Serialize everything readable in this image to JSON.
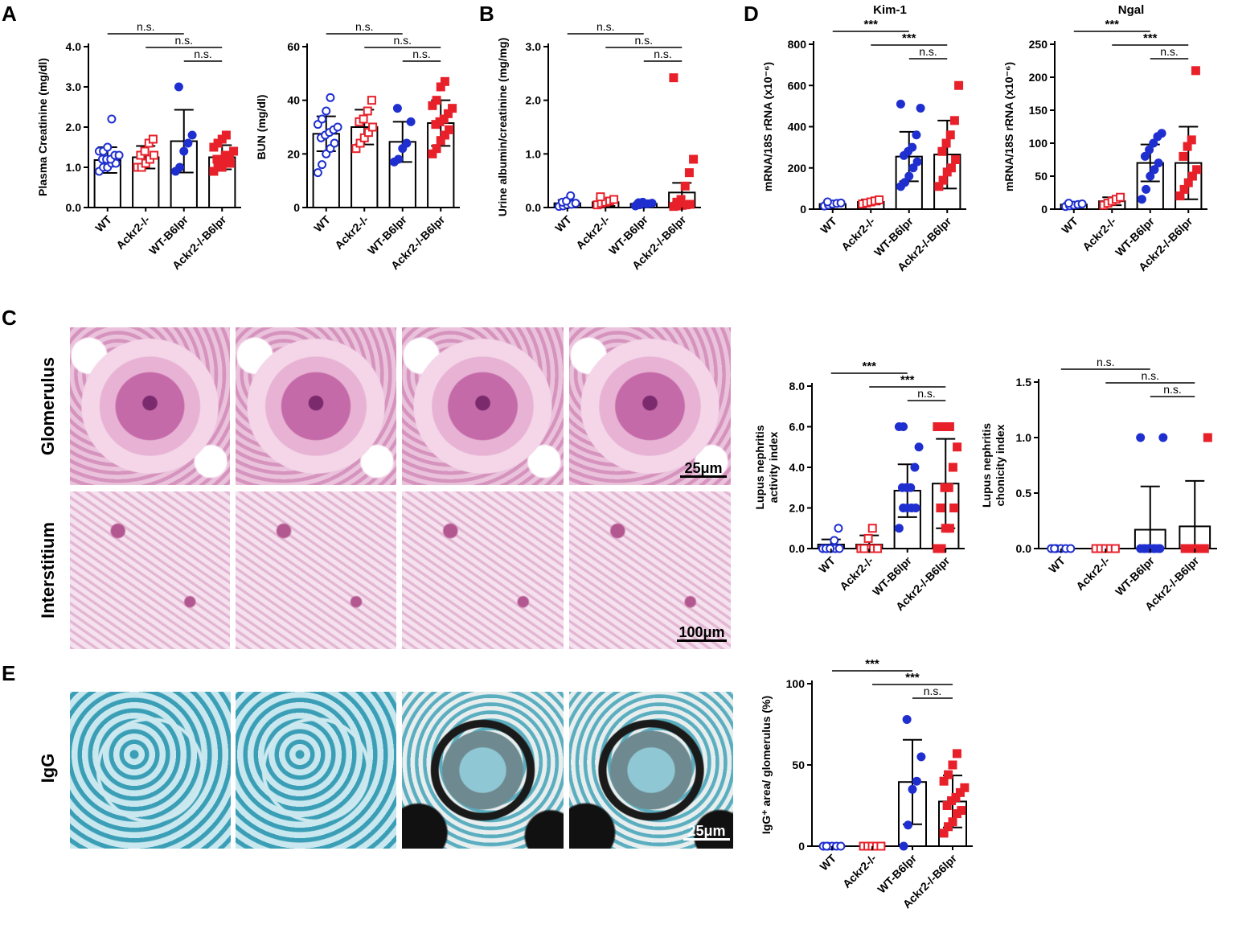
{
  "panels": {
    "A": "A",
    "B": "B",
    "C": "C",
    "D": "D",
    "E": "E"
  },
  "groups": [
    "WT",
    "Ackr2-/-",
    "WT-B6lpr",
    "Ackr2-/-B6lpr"
  ],
  "micrographs": {
    "glomerulus_label": "Glomerulus",
    "interstitium_label": "Interstitium",
    "igg_label": "IgG",
    "scale_glom": "25μm",
    "scale_int": "100μm",
    "scale_igg": "25μm"
  },
  "colors": {
    "wt": "#1f2fcf",
    "ko": "#e8202a",
    "axis": "#000000"
  },
  "chart_data": [
    {
      "id": "creatinine",
      "type": "bar",
      "title": "",
      "ylabel": "Plasma Creatinine  (mg/dl)",
      "ylim": [
        0,
        4
      ],
      "yticks": [
        "0.0",
        "1.0",
        "2.0",
        "3.0",
        "4.0"
      ],
      "categories": [
        "WT",
        "Ackr2-/-",
        "WT-B6lpr",
        "Ackr2-/-B6lpr"
      ],
      "values": [
        1.18,
        1.25,
        1.65,
        1.25
      ],
      "sd": [
        0.32,
        0.28,
        0.78,
        0.3
      ],
      "points": [
        [
          0.9,
          1.0,
          1.0,
          1.1,
          1.1,
          1.2,
          1.2,
          1.2,
          1.3,
          1.3,
          1.4,
          1.4,
          1.5,
          2.2
        ],
        [
          1.0,
          1.0,
          1.1,
          1.2,
          1.3,
          1.3,
          1.4,
          1.6,
          1.7
        ],
        [
          0.9,
          1.0,
          1.4,
          1.6,
          1.8,
          3.0
        ],
        [
          0.9,
          1.0,
          1.0,
          1.1,
          1.1,
          1.2,
          1.2,
          1.3,
          1.3,
          1.4,
          1.5,
          1.6,
          1.7,
          1.8
        ]
      ],
      "sig": [
        {
          "from": 0,
          "to": 2,
          "label": "n.s."
        },
        {
          "from": 1,
          "to": 3,
          "label": "n.s."
        },
        {
          "from": 2,
          "to": 3,
          "label": "n.s."
        }
      ]
    },
    {
      "id": "bun",
      "type": "bar",
      "title": "",
      "ylabel": "BUN (mg/dl)",
      "ylim": [
        0,
        60
      ],
      "yticks": [
        "0",
        "20",
        "40",
        "60"
      ],
      "categories": [
        "WT",
        "Ackr2-/-",
        "WT-B6lpr",
        "Ackr2-/-B6lpr"
      ],
      "values": [
        27.5,
        30,
        24.5,
        31.5
      ],
      "sd": [
        6.5,
        6.5,
        7.5,
        8.5
      ],
      "points": [
        [
          13,
          16,
          20,
          22,
          24,
          26,
          27,
          28,
          29,
          30,
          31,
          33,
          36,
          41
        ],
        [
          22,
          24,
          26,
          28,
          30,
          32,
          33,
          36,
          40
        ],
        [
          17,
          18,
          22,
          24,
          32,
          37
        ],
        [
          20,
          22,
          25,
          27,
          29,
          31,
          32,
          33,
          35,
          37,
          38,
          40,
          45,
          47
        ]
      ],
      "sig": [
        {
          "from": 0,
          "to": 2,
          "label": "n.s."
        },
        {
          "from": 1,
          "to": 3,
          "label": "n.s."
        },
        {
          "from": 2,
          "to": 3,
          "label": "n.s."
        }
      ]
    },
    {
      "id": "albumin",
      "type": "bar",
      "title": "",
      "ylabel": "Urine albumin/creatinine (mg/mg)",
      "ylim": [
        0,
        3
      ],
      "yticks": [
        "0.0",
        "1.0",
        "2.0",
        "3.0"
      ],
      "categories": [
        "WT",
        "Ackr2-/-",
        "WT-B6lpr",
        "Ackr2-/-B6lpr"
      ],
      "values": [
        0.08,
        0.1,
        0.07,
        0.28
      ],
      "sd": [
        0.06,
        0.07,
        0.04,
        0.18
      ],
      "points": [
        [
          0.02,
          0.03,
          0.05,
          0.06,
          0.08,
          0.1,
          0.12,
          0.22
        ],
        [
          0.05,
          0.08,
          0.1,
          0.12,
          0.15,
          0.2
        ],
        [
          0.03,
          0.05,
          0.06,
          0.07,
          0.08,
          0.09,
          0.1
        ],
        [
          0.02,
          0.03,
          0.04,
          0.05,
          0.06,
          0.1,
          0.15,
          0.4,
          0.65,
          0.9,
          2.42
        ]
      ],
      "sig": [
        {
          "from": 0,
          "to": 2,
          "label": "n.s."
        },
        {
          "from": 1,
          "to": 3,
          "label": "n.s."
        },
        {
          "from": 2,
          "to": 3,
          "label": "n.s."
        }
      ]
    },
    {
      "id": "kim1",
      "type": "bar",
      "title": "Kim-1",
      "ylabel": "mRNA/18S rRNA (x10⁻⁶)",
      "ylim": [
        0,
        800
      ],
      "yticks": [
        "0",
        "200",
        "400",
        "600",
        "800"
      ],
      "categories": [
        "WT",
        "Ackr2-/-",
        "WT-B6lpr",
        "Ackr2-/-B6lpr"
      ],
      "values": [
        25,
        35,
        255,
        265
      ],
      "sd": [
        10,
        12,
        120,
        165
      ],
      "points": [
        [
          15,
          20,
          25,
          28,
          30,
          35
        ],
        [
          25,
          30,
          35,
          40,
          45
        ],
        [
          110,
          130,
          160,
          200,
          230,
          260,
          280,
          300,
          360,
          490,
          510
        ],
        [
          110,
          140,
          180,
          200,
          240,
          280,
          320,
          360,
          430,
          600
        ]
      ],
      "sig": [
        {
          "from": 0,
          "to": 2,
          "label": "***"
        },
        {
          "from": 1,
          "to": 3,
          "label": "***"
        },
        {
          "from": 2,
          "to": 3,
          "label": "n.s."
        }
      ]
    },
    {
      "id": "ngal",
      "type": "bar",
      "title": "Ngal",
      "ylabel": "mRNA/18S rRNA (x10⁻⁶)",
      "ylim": [
        0,
        250
      ],
      "yticks": [
        "0",
        "50",
        "100",
        "150",
        "200",
        "250"
      ],
      "categories": [
        "WT",
        "Ackr2-/-",
        "WT-B6lpr",
        "Ackr2-/-B6lpr"
      ],
      "values": [
        7,
        12,
        70,
        70
      ],
      "sd": [
        3,
        6,
        28,
        55
      ],
      "points": [
        [
          4,
          5,
          6,
          7,
          8,
          9
        ],
        [
          6,
          9,
          12,
          15,
          18
        ],
        [
          15,
          30,
          50,
          60,
          70,
          80,
          90,
          100,
          110,
          115
        ],
        [
          20,
          30,
          40,
          50,
          60,
          80,
          95,
          105,
          210
        ]
      ],
      "sig": [
        {
          "from": 0,
          "to": 2,
          "label": "***"
        },
        {
          "from": 1,
          "to": 3,
          "label": "***"
        },
        {
          "from": 2,
          "to": 3,
          "label": "n.s."
        }
      ]
    },
    {
      "id": "activity",
      "type": "bar",
      "title": "",
      "ylabel": "Lupus nephritis activity index",
      "ylim": [
        0,
        8
      ],
      "yticks": [
        "0.0",
        "2.0",
        "4.0",
        "6.0",
        "8.0"
      ],
      "categories": [
        "WT",
        "Ackr2-/-",
        "WT-B6lpr",
        "Ackr2-/-B6lpr"
      ],
      "values": [
        0.2,
        0.2,
        2.85,
        3.2
      ],
      "sd": [
        0.25,
        0.45,
        1.3,
        2.2
      ],
      "points": [
        [
          0,
          0,
          0,
          0,
          0,
          0,
          0,
          0.4,
          1.0
        ],
        [
          0,
          0,
          0,
          0,
          0,
          0,
          0.5,
          1.0
        ],
        [
          1.0,
          2.0,
          2.0,
          2.0,
          2.0,
          3.0,
          3.0,
          3.0,
          4.0,
          5.0,
          6.0,
          6.0
        ],
        [
          0,
          0,
          1.0,
          1.0,
          2.0,
          2.0,
          3.0,
          3.0,
          4.0,
          5.0,
          6.0,
          6.0,
          6.0,
          6.0
        ]
      ],
      "sig": [
        {
          "from": 0,
          "to": 2,
          "label": "***"
        },
        {
          "from": 1,
          "to": 3,
          "label": "***"
        },
        {
          "from": 2,
          "to": 3,
          "label": "n.s."
        }
      ]
    },
    {
      "id": "chronicity",
      "type": "bar",
      "title": "",
      "ylabel": "Lupus nephritis chonicity index",
      "ylim": [
        0,
        1.5
      ],
      "yticks": [
        "0.0",
        "0.5",
        "1.0",
        "1.5"
      ],
      "categories": [
        "WT",
        "Ackr2-/-",
        "WT-B6lpr",
        "Ackr2-/-B6lpr"
      ],
      "values": [
        0,
        0,
        0.17,
        0.2
      ],
      "sd": [
        0,
        0,
        0.39,
        0.41
      ],
      "points": [
        [
          0,
          0,
          0,
          0,
          0,
          0
        ],
        [
          0,
          0,
          0,
          0,
          0
        ],
        [
          0,
          0,
          0,
          0,
          0,
          0,
          0,
          0,
          0,
          1.0,
          1.0
        ],
        [
          0,
          0,
          0,
          0,
          0,
          0,
          0,
          0,
          0,
          1.0
        ]
      ],
      "sig": [
        {
          "from": 0,
          "to": 2,
          "label": "n.s."
        },
        {
          "from": 1,
          "to": 3,
          "label": "n.s."
        },
        {
          "from": 2,
          "to": 3,
          "label": "n.s."
        }
      ]
    },
    {
      "id": "igg",
      "type": "bar",
      "title": "",
      "ylabel": "IgG⁺ area/ glomerulus (%)",
      "ylim": [
        0,
        100
      ],
      "yticks": [
        "0",
        "50",
        "100"
      ],
      "categories": [
        "WT",
        "Ackr2-/-",
        "WT-B6lpr",
        "Ackr2-/-B6lpr"
      ],
      "values": [
        0,
        0,
        39.5,
        27.5
      ],
      "sd": [
        0.5,
        0.5,
        26,
        16
      ],
      "points": [
        [
          0,
          0,
          0,
          0,
          0,
          0
        ],
        [
          0,
          0,
          0,
          0,
          0
        ],
        [
          0,
          13,
          35,
          40,
          55,
          78
        ],
        [
          8,
          12,
          15,
          20,
          22,
          25,
          28,
          30,
          33,
          36,
          40,
          44,
          50,
          57
        ]
      ],
      "sig": [
        {
          "from": 0,
          "to": 2,
          "label": "***"
        },
        {
          "from": 1,
          "to": 3,
          "label": "***"
        },
        {
          "from": 2,
          "to": 3,
          "label": "n.s."
        }
      ]
    }
  ]
}
